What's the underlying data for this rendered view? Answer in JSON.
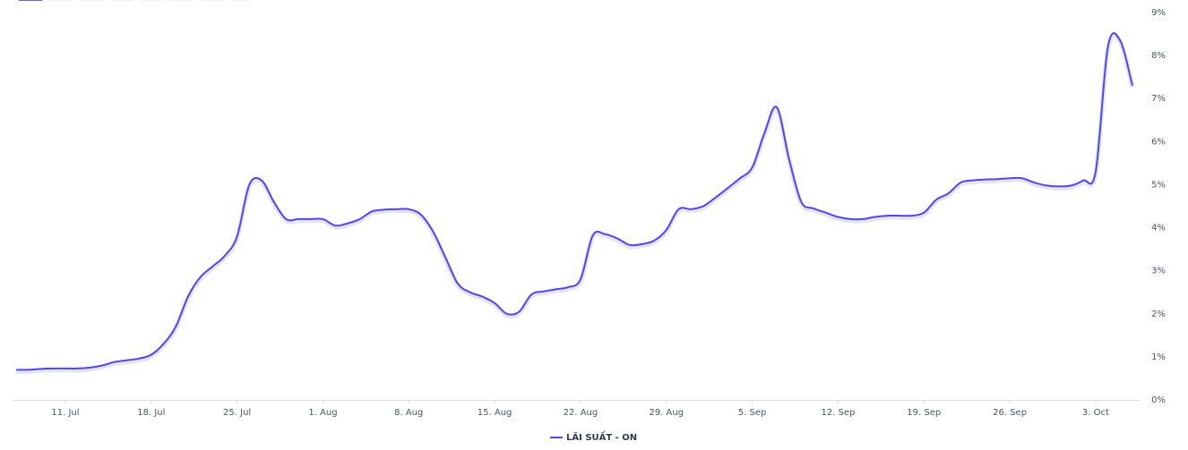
{
  "chart_data": {
    "type": "line",
    "categories": [
      null,
      null,
      null,
      null,
      "11. Jul",
      null,
      null,
      null,
      null,
      null,
      null,
      "18. Jul",
      null,
      null,
      null,
      null,
      null,
      null,
      "25. Jul",
      null,
      null,
      null,
      null,
      null,
      null,
      "1. Aug",
      null,
      null,
      null,
      null,
      null,
      null,
      "8. Aug",
      null,
      null,
      null,
      null,
      null,
      null,
      "15. Aug",
      null,
      null,
      null,
      null,
      null,
      null,
      "22. Aug",
      null,
      null,
      null,
      null,
      null,
      null,
      "29. Aug",
      null,
      null,
      null,
      null,
      null,
      null,
      "5. Sep",
      null,
      null,
      null,
      null,
      null,
      null,
      "12. Sep",
      null,
      null,
      null,
      null,
      null,
      null,
      "19. Sep",
      null,
      null,
      null,
      null,
      null,
      null,
      "26. Sep",
      null,
      null,
      null,
      null,
      null,
      null,
      "3. Oct",
      null,
      null,
      null
    ],
    "series": [
      {
        "name": "LÃI SUẤT - ON",
        "color": "#4f46f5",
        "values": [
          0.7,
          0.7,
          0.72,
          0.73,
          0.73,
          0.73,
          0.75,
          0.8,
          0.88,
          0.92,
          0.96,
          1.05,
          1.3,
          1.7,
          2.4,
          2.85,
          3.1,
          3.35,
          3.8,
          5.0,
          5.1,
          4.6,
          4.2,
          4.2,
          4.2,
          4.2,
          4.05,
          4.1,
          4.2,
          4.38,
          4.42,
          4.43,
          4.43,
          4.3,
          3.9,
          3.3,
          2.7,
          2.5,
          2.4,
          2.25,
          2.0,
          2.05,
          2.45,
          2.52,
          2.57,
          2.62,
          2.8,
          3.82,
          3.85,
          3.75,
          3.6,
          3.62,
          3.7,
          3.95,
          4.43,
          4.43,
          4.5,
          4.7,
          4.92,
          5.15,
          5.4,
          6.2,
          6.8,
          5.6,
          4.6,
          4.45,
          4.35,
          4.25,
          4.2,
          4.2,
          4.25,
          4.28,
          4.28,
          4.28,
          4.35,
          4.65,
          4.8,
          5.05,
          5.1,
          5.12,
          5.13,
          5.15,
          5.15,
          5.05,
          4.98,
          4.96,
          4.98,
          5.1,
          5.3,
          8.2,
          8.35,
          7.3
        ]
      }
    ],
    "ylim": [
      0,
      9
    ],
    "yticks": [
      {
        "value": 0,
        "label": "0%"
      },
      {
        "value": 1,
        "label": "1%"
      },
      {
        "value": 2,
        "label": "2%"
      },
      {
        "value": 3,
        "label": "3%"
      },
      {
        "value": 4,
        "label": "4%"
      },
      {
        "value": 5,
        "label": "5%"
      },
      {
        "value": 6,
        "label": "6%"
      },
      {
        "value": 7,
        "label": "7%"
      },
      {
        "value": 8,
        "label": "8%"
      },
      {
        "value": 9,
        "label": "9%"
      }
    ],
    "grid": false,
    "legend": "bottom"
  }
}
